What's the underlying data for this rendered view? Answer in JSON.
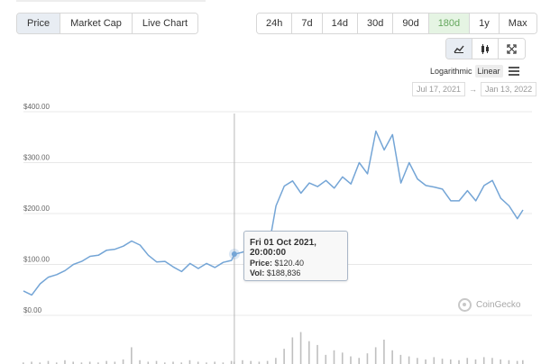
{
  "chart_type_tabs": [
    {
      "label": "Price",
      "active": true
    },
    {
      "label": "Market Cap",
      "active": false
    },
    {
      "label": "Live Chart",
      "active": false
    }
  ],
  "range_tabs": [
    {
      "label": "24h",
      "active": false
    },
    {
      "label": "7d",
      "active": false
    },
    {
      "label": "14d",
      "active": false
    },
    {
      "label": "30d",
      "active": false
    },
    {
      "label": "90d",
      "active": false
    },
    {
      "label": "180d",
      "active": true
    },
    {
      "label": "1y",
      "active": false
    },
    {
      "label": "Max",
      "active": false
    }
  ],
  "view_toggles": [
    {
      "icon": "line-chart-icon",
      "active": true
    },
    {
      "icon": "candlestick-icon",
      "active": false
    },
    {
      "icon": "fullscreen-icon",
      "active": false
    }
  ],
  "scale": {
    "options": [
      "Logarithmic",
      "Linear"
    ],
    "active": "Linear",
    "menu_icon": "hamburger-menu-icon"
  },
  "date_range": {
    "from": "Jul 17, 2021",
    "separator": "→",
    "to": "Jan 13, 2022"
  },
  "tooltip": {
    "date": "Fri 01 Oct 2021, 20:00:00",
    "price_label": "Price:",
    "price_value": "$120.40",
    "vol_label": "Vol:",
    "vol_value": "$188,836"
  },
  "watermark": {
    "text": "CoinGecko"
  },
  "colors": {
    "line": "#74a5d6",
    "active_range": "#64a75d",
    "grid": "#e8e8e8",
    "volume": "#bfbfbf"
  },
  "chart_data": {
    "type": "line",
    "title": "",
    "xlabel": "",
    "ylabel": "",
    "ylim": [
      0,
      400
    ],
    "y_ticks": [
      "$0.00",
      "$100.00",
      "$200.00",
      "$300.00",
      "$400.00"
    ],
    "y_tick_values": [
      0,
      100,
      200,
      300,
      400
    ],
    "x_range": [
      "2021-07-17",
      "2022-01-13"
    ],
    "grid": true,
    "highlight": {
      "date": "2021-10-01",
      "price": 120.4,
      "volume": 188836
    },
    "series": [
      {
        "x": [
          "2021-07-17",
          "2021-07-20",
          "2021-07-23",
          "2021-07-26",
          "2021-07-29",
          "2021-08-01",
          "2021-08-04",
          "2021-08-07",
          "2021-08-10",
          "2021-08-13",
          "2021-08-16",
          "2021-08-19",
          "2021-08-22",
          "2021-08-25",
          "2021-08-28",
          "2021-08-31",
          "2021-09-03",
          "2021-09-06",
          "2021-09-09",
          "2021-09-12",
          "2021-09-15",
          "2021-09-18",
          "2021-09-21",
          "2021-09-24",
          "2021-09-27",
          "2021-09-30",
          "2021-10-01",
          "2021-10-04",
          "2021-10-07",
          "2021-10-10",
          "2021-10-13",
          "2021-10-16",
          "2021-10-19",
          "2021-10-22",
          "2021-10-25",
          "2021-10-28",
          "2021-10-31",
          "2021-11-03",
          "2021-11-06",
          "2021-11-09",
          "2021-11-12",
          "2021-11-15",
          "2021-11-18",
          "2021-11-21",
          "2021-11-24",
          "2021-11-27",
          "2021-11-30",
          "2021-12-03",
          "2021-12-06",
          "2021-12-09",
          "2021-12-12",
          "2021-12-15",
          "2021-12-18",
          "2021-12-21",
          "2021-12-24",
          "2021-12-27",
          "2021-12-30",
          "2022-01-02",
          "2022-01-05",
          "2022-01-08",
          "2022-01-11",
          "2022-01-13"
        ],
        "values": [
          48,
          40,
          62,
          75,
          80,
          88,
          100,
          106,
          116,
          118,
          128,
          130,
          136,
          146,
          138,
          118,
          105,
          106,
          95,
          86,
          102,
          92,
          102,
          94,
          104,
          108,
          120,
          124,
          133,
          128,
          122,
          215,
          254,
          264,
          240,
          260,
          253,
          265,
          250,
          272,
          258,
          300,
          278,
          362,
          325,
          355,
          260,
          300,
          268,
          255,
          252,
          248,
          225,
          225,
          245,
          225,
          255,
          265,
          230,
          215,
          190,
          207
        ]
      }
    ],
    "volume": [
      2,
      3,
      2,
      4,
      2,
      5,
      3,
      2,
      3,
      2,
      4,
      3,
      6,
      22,
      5,
      3,
      4,
      2,
      3,
      2,
      5,
      3,
      2,
      3,
      2,
      4,
      3,
      5,
      4,
      3,
      4,
      8,
      20,
      35,
      42,
      30,
      25,
      12,
      18,
      15,
      10,
      8,
      14,
      22,
      32,
      18,
      12,
      10,
      8,
      6,
      9,
      7,
      6,
      5,
      8,
      6,
      9,
      8,
      6,
      5,
      4,
      5
    ],
    "volume_max": 45
  }
}
